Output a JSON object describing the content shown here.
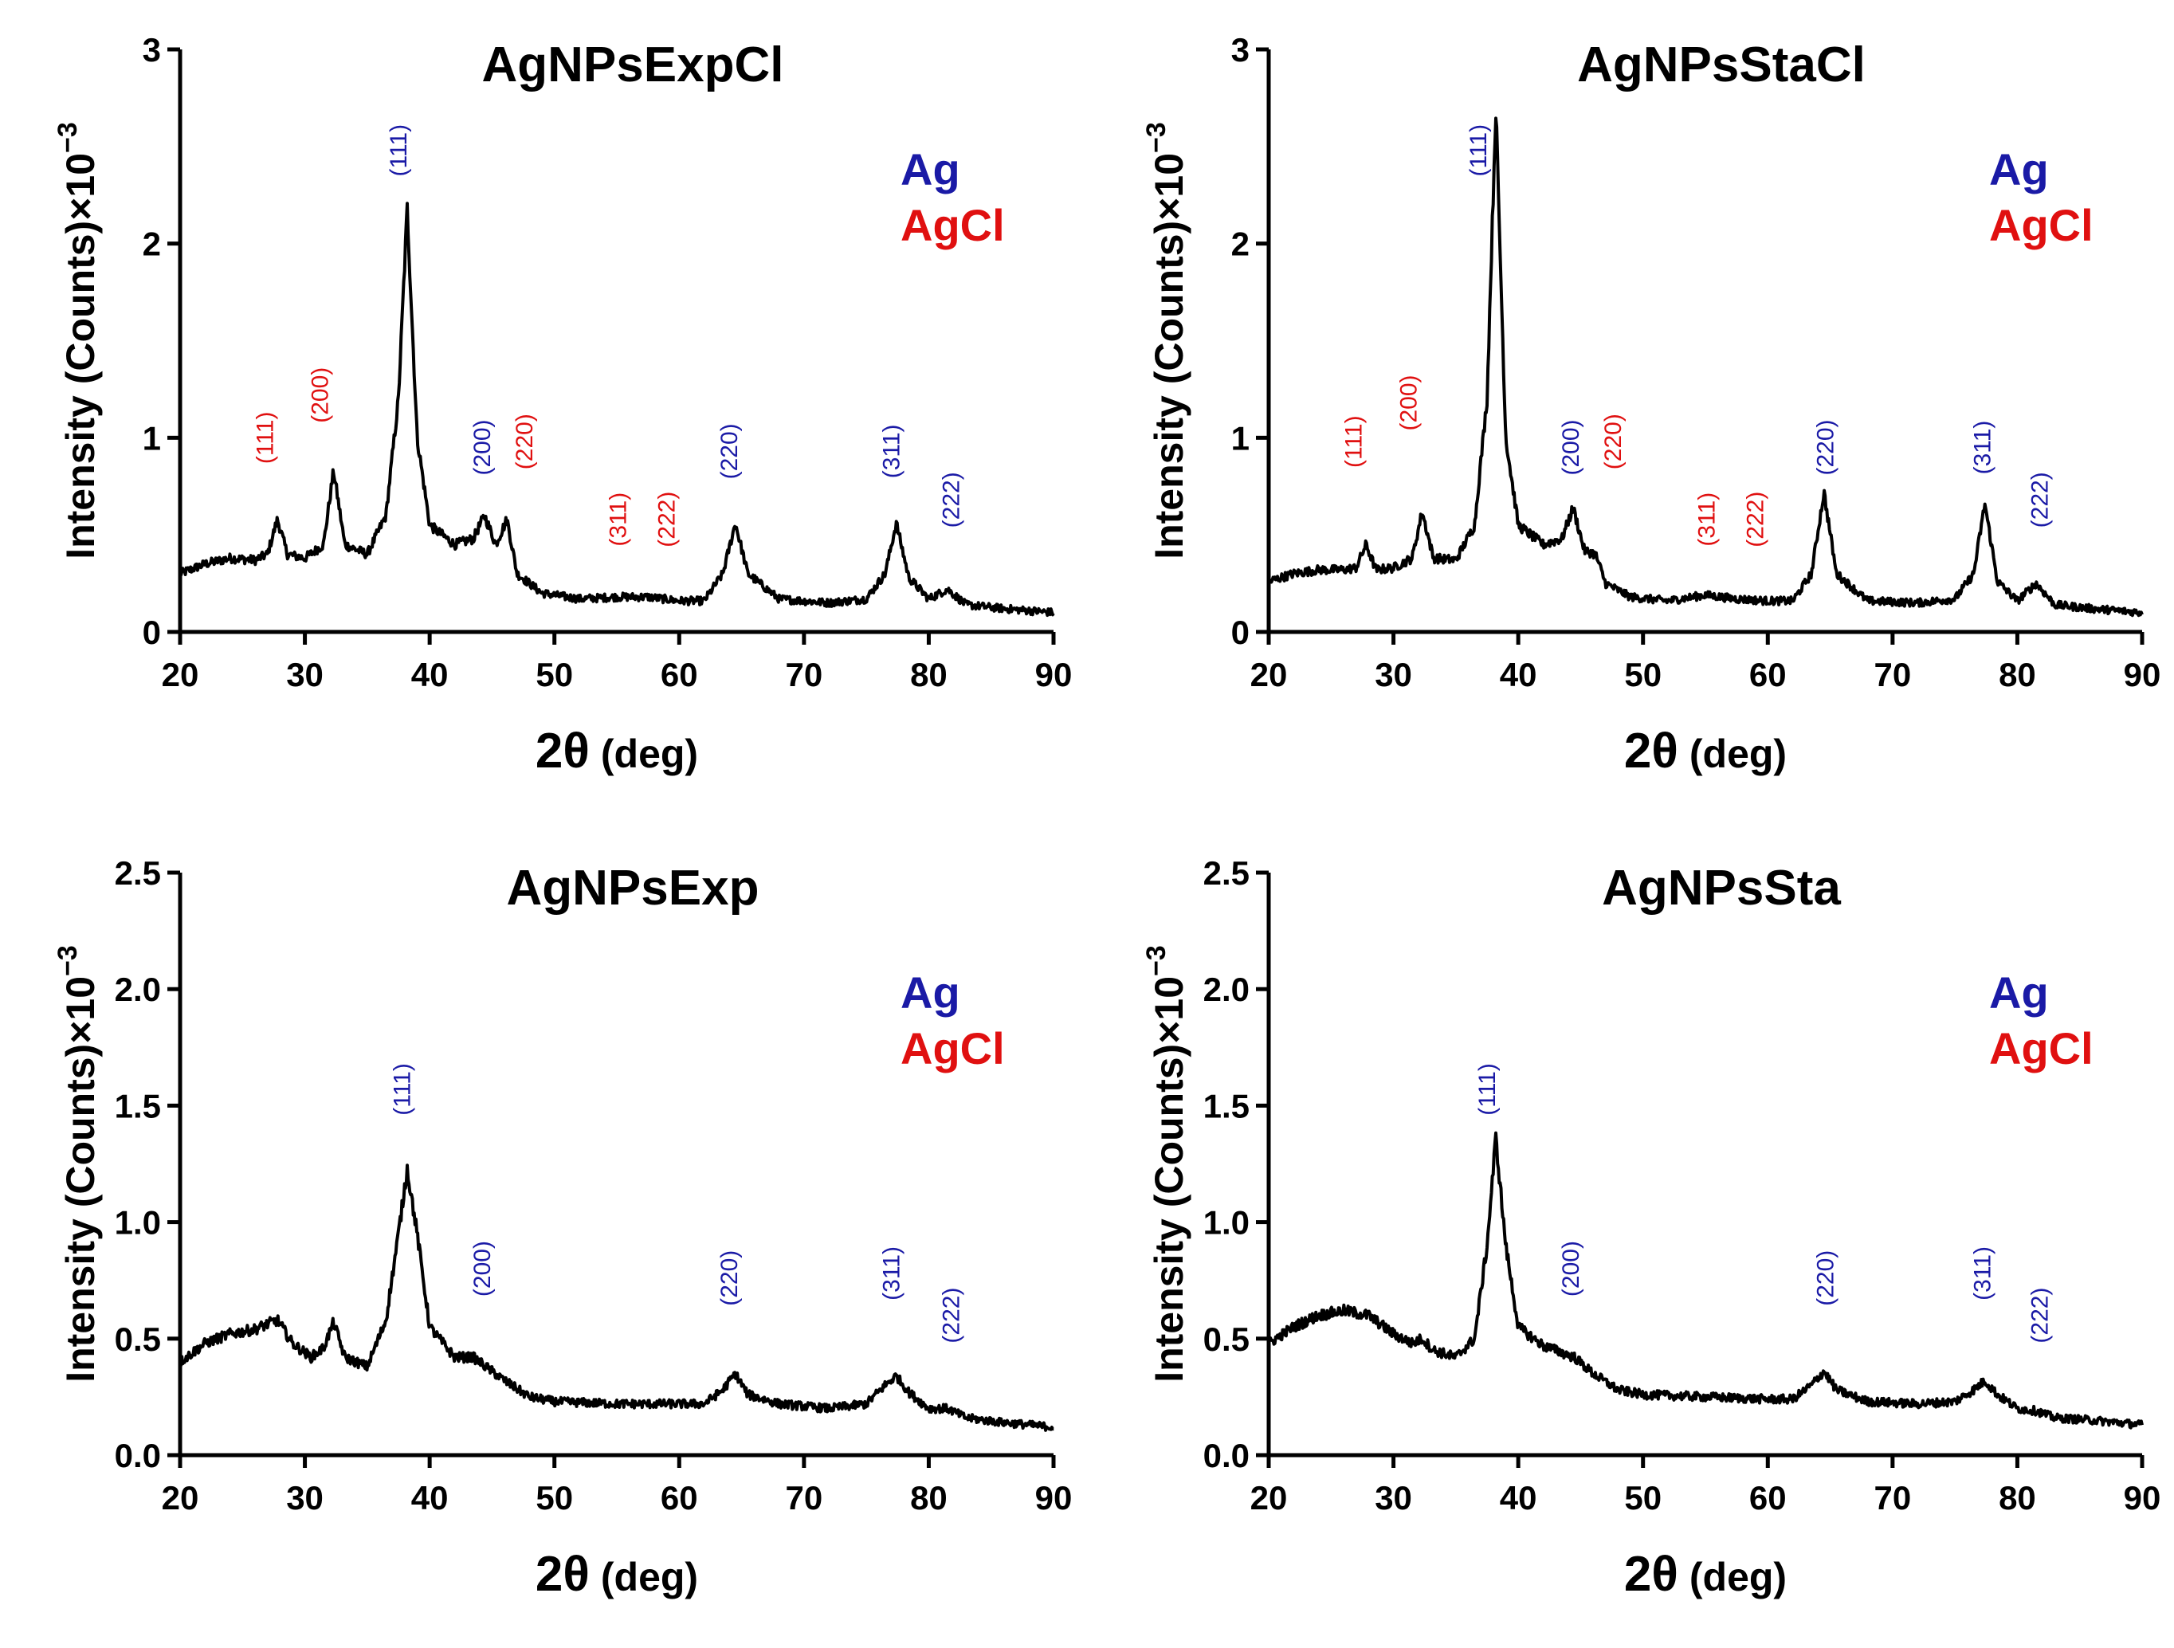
{
  "figure": {
    "colors": {
      "Ag": "#1a1aa6",
      "AgCl": "#e01010",
      "trace": "#000000"
    },
    "legend": [
      {
        "text": "Ag",
        "phase": "Ag"
      },
      {
        "text": "AgCl",
        "phase": "AgCl"
      }
    ]
  },
  "chart_data": [
    {
      "type": "line",
      "title": "AgNPsExpCl",
      "xlabel": "2θ",
      "xlabel_unit": "(deg)",
      "ylabel": "Intensity (Counts)×10",
      "ylabel_exp": "−3",
      "xlim": [
        20,
        90
      ],
      "ylim": [
        0,
        3
      ],
      "xticks": [
        20,
        30,
        40,
        50,
        60,
        70,
        80,
        90
      ],
      "yticks": [
        0,
        1,
        2,
        3
      ],
      "ytick_labels": [
        "0",
        "1",
        "2",
        "3"
      ],
      "x": [
        20,
        22,
        24,
        26,
        27,
        27.8,
        28.6,
        30,
        31.5,
        32.3,
        33.2,
        35,
        36.5,
        37.5,
        38.2,
        39,
        40,
        42,
        43.5,
        44.4,
        45.3,
        46.2,
        47,
        49,
        52,
        55,
        57.5,
        60,
        62,
        63.5,
        64.5,
        65.5,
        68,
        72,
        75,
        76.5,
        77.4,
        78.4,
        80,
        81.5,
        83,
        86,
        88,
        90
      ],
      "y": [
        0.3,
        0.35,
        0.38,
        0.37,
        0.4,
        0.58,
        0.4,
        0.38,
        0.45,
        0.83,
        0.45,
        0.4,
        0.6,
        1.2,
        2.18,
        1.0,
        0.55,
        0.45,
        0.48,
        0.6,
        0.45,
        0.58,
        0.3,
        0.2,
        0.17,
        0.18,
        0.18,
        0.16,
        0.16,
        0.3,
        0.56,
        0.3,
        0.17,
        0.15,
        0.17,
        0.3,
        0.56,
        0.28,
        0.17,
        0.22,
        0.14,
        0.12,
        0.11,
        0.1
      ],
      "peaks": [
        {
          "hkl": "(111)",
          "phase": "AgCl",
          "x": 26.8,
          "y": 1.0
        },
        {
          "hkl": "(200)",
          "phase": "AgCl",
          "x": 31.2,
          "y": 1.22
        },
        {
          "hkl": "(111)",
          "phase": "Ag",
          "x": 37.5,
          "y": 2.48
        },
        {
          "hkl": "(200)",
          "phase": "Ag",
          "x": 44.2,
          "y": 0.95
        },
        {
          "hkl": "(220)",
          "phase": "AgCl",
          "x": 47.6,
          "y": 0.98
        },
        {
          "hkl": "(311)",
          "phase": "AgCl",
          "x": 55.1,
          "y": 0.58
        },
        {
          "hkl": "(222)",
          "phase": "AgCl",
          "x": 59.0,
          "y": 0.58
        },
        {
          "hkl": "(220)",
          "phase": "Ag",
          "x": 64.0,
          "y": 0.93
        },
        {
          "hkl": "(311)",
          "phase": "Ag",
          "x": 77.0,
          "y": 0.93
        },
        {
          "hkl": "(222)",
          "phase": "Ag",
          "x": 81.8,
          "y": 0.68
        }
      ]
    },
    {
      "type": "line",
      "title": "AgNPsStaCl",
      "xlabel": "2θ",
      "xlabel_unit": "(deg)",
      "ylabel": "Intensity (Counts)×10",
      "ylabel_exp": "−3",
      "xlim": [
        20,
        90
      ],
      "ylim": [
        0,
        3
      ],
      "xticks": [
        20,
        30,
        40,
        50,
        60,
        70,
        80,
        90
      ],
      "yticks": [
        0,
        1,
        2,
        3
      ],
      "ytick_labels": [
        "0",
        "1",
        "2",
        "3"
      ],
      "x": [
        20,
        22,
        24,
        26,
        27,
        27.8,
        28.6,
        30,
        31.5,
        32.3,
        33.2,
        35,
        36.5,
        37.5,
        38.2,
        39,
        40,
        42,
        43.5,
        44.4,
        45.3,
        46.2,
        47,
        49,
        52,
        55,
        57.5,
        60,
        62,
        63.5,
        64.5,
        65.5,
        68,
        72,
        75,
        76.5,
        77.4,
        78.4,
        80,
        81.5,
        83,
        86,
        88,
        90
      ],
      "y": [
        0.26,
        0.3,
        0.32,
        0.32,
        0.33,
        0.45,
        0.32,
        0.33,
        0.38,
        0.62,
        0.38,
        0.37,
        0.55,
        1.2,
        2.7,
        1.0,
        0.55,
        0.45,
        0.48,
        0.64,
        0.42,
        0.4,
        0.25,
        0.18,
        0.16,
        0.19,
        0.17,
        0.16,
        0.16,
        0.3,
        0.72,
        0.3,
        0.16,
        0.15,
        0.17,
        0.3,
        0.66,
        0.26,
        0.16,
        0.25,
        0.14,
        0.12,
        0.11,
        0.1
      ],
      "peaks": [
        {
          "hkl": "(111)",
          "phase": "AgCl",
          "x": 26.8,
          "y": 0.98
        },
        {
          "hkl": "(200)",
          "phase": "AgCl",
          "x": 31.2,
          "y": 1.18
        },
        {
          "hkl": "(111)",
          "phase": "Ag",
          "x": 36.8,
          "y": 2.48
        },
        {
          "hkl": "(200)",
          "phase": "Ag",
          "x": 44.2,
          "y": 0.95
        },
        {
          "hkl": "(220)",
          "phase": "AgCl",
          "x": 47.6,
          "y": 0.98
        },
        {
          "hkl": "(311)",
          "phase": "AgCl",
          "x": 55.1,
          "y": 0.58
        },
        {
          "hkl": "(222)",
          "phase": "AgCl",
          "x": 59.0,
          "y": 0.58
        },
        {
          "hkl": "(220)",
          "phase": "Ag",
          "x": 64.6,
          "y": 0.95
        },
        {
          "hkl": "(311)",
          "phase": "Ag",
          "x": 77.2,
          "y": 0.95
        },
        {
          "hkl": "(222)",
          "phase": "Ag",
          "x": 81.8,
          "y": 0.68
        }
      ]
    },
    {
      "type": "line",
      "title": "AgNPsExp",
      "xlabel": "2θ",
      "xlabel_unit": "(deg)",
      "ylabel": "Intensity (Counts)×10",
      "ylabel_exp": "−3",
      "xlim": [
        20,
        90
      ],
      "ylim": [
        0,
        2.5
      ],
      "xticks": [
        20,
        30,
        40,
        50,
        60,
        70,
        80,
        90
      ],
      "yticks": [
        0,
        0.5,
        1.0,
        1.5,
        2.0,
        2.5
      ],
      "ytick_labels": [
        "0.0",
        "0.5",
        "1.0",
        "1.5",
        "2.0",
        "2.5"
      ],
      "x": [
        20,
        22,
        24,
        26,
        27.8,
        29,
        30.5,
        31.5,
        32.3,
        33.2,
        35,
        36.5,
        37.5,
        38.2,
        39,
        40,
        42,
        43.5,
        44.5,
        46,
        48,
        50,
        55,
        60,
        62,
        63.5,
        64.5,
        65.5,
        68,
        72,
        75,
        76.5,
        77.4,
        78.4,
        80,
        81.5,
        83,
        86,
        88,
        90
      ],
      "y": [
        0.4,
        0.48,
        0.52,
        0.54,
        0.58,
        0.48,
        0.42,
        0.46,
        0.57,
        0.42,
        0.38,
        0.58,
        0.95,
        1.23,
        0.95,
        0.55,
        0.42,
        0.42,
        0.38,
        0.32,
        0.25,
        0.23,
        0.22,
        0.22,
        0.22,
        0.28,
        0.35,
        0.26,
        0.22,
        0.2,
        0.22,
        0.3,
        0.34,
        0.27,
        0.2,
        0.2,
        0.16,
        0.14,
        0.13,
        0.12
      ],
      "peaks": [
        {
          "hkl": "(111)",
          "phase": "Ag",
          "x": 37.8,
          "y": 1.57
        },
        {
          "hkl": "(200)",
          "phase": "Ag",
          "x": 44.2,
          "y": 0.8
        },
        {
          "hkl": "(220)",
          "phase": "Ag",
          "x": 64.0,
          "y": 0.76
        },
        {
          "hkl": "(311)",
          "phase": "Ag",
          "x": 77.0,
          "y": 0.78
        },
        {
          "hkl": "(222)",
          "phase": "Ag",
          "x": 81.8,
          "y": 0.6
        }
      ]
    },
    {
      "type": "line",
      "title": "AgNPsSta",
      "xlabel": "2θ",
      "xlabel_unit": "(deg)",
      "ylabel": "Intensity (Counts)×10",
      "ylabel_exp": "−3",
      "xlim": [
        20,
        90
      ],
      "ylim": [
        0,
        2.5
      ],
      "xticks": [
        20,
        30,
        40,
        50,
        60,
        70,
        80,
        90
      ],
      "yticks": [
        0,
        0.5,
        1.0,
        1.5,
        2.0,
        2.5
      ],
      "ytick_labels": [
        "0.0",
        "0.5",
        "1.0",
        "1.5",
        "2.0",
        "2.5"
      ],
      "x": [
        20,
        22,
        24,
        26,
        28,
        30,
        31.5,
        32.3,
        33.2,
        35,
        36.5,
        37.5,
        38.2,
        39,
        40,
        42,
        43.5,
        44.5,
        46,
        48,
        50,
        55,
        60,
        62,
        63.5,
        64.5,
        65.5,
        68,
        72,
        75,
        76.5,
        77.4,
        78.4,
        80,
        81.5,
        83,
        86,
        88,
        90
      ],
      "y": [
        0.48,
        0.55,
        0.6,
        0.62,
        0.6,
        0.52,
        0.48,
        0.5,
        0.45,
        0.42,
        0.5,
        0.9,
        1.36,
        0.9,
        0.55,
        0.47,
        0.44,
        0.42,
        0.35,
        0.28,
        0.26,
        0.25,
        0.24,
        0.24,
        0.3,
        0.36,
        0.28,
        0.23,
        0.22,
        0.23,
        0.28,
        0.32,
        0.26,
        0.2,
        0.19,
        0.16,
        0.15,
        0.14,
        0.13
      ],
      "peaks": [
        {
          "hkl": "(111)",
          "phase": "Ag",
          "x": 37.5,
          "y": 1.57
        },
        {
          "hkl": "(200)",
          "phase": "Ag",
          "x": 44.2,
          "y": 0.8
        },
        {
          "hkl": "(220)",
          "phase": "Ag",
          "x": 64.6,
          "y": 0.76
        },
        {
          "hkl": "(311)",
          "phase": "Ag",
          "x": 77.2,
          "y": 0.78
        },
        {
          "hkl": "(222)",
          "phase": "Ag",
          "x": 81.8,
          "y": 0.6
        }
      ]
    }
  ]
}
